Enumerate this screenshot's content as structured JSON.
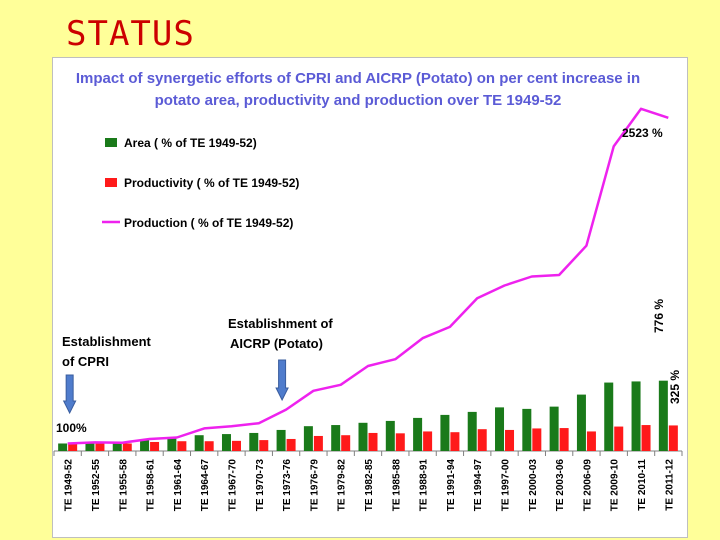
{
  "slide": {
    "title": "STATUS"
  },
  "colors": {
    "area": "#1a7a1a",
    "productivity": "#ff1a1a",
    "production": "#ee22ee",
    "title": "#5b5bd6",
    "slide_title": "#cc0000",
    "callout_arrow": "#4f7ccc"
  },
  "chart_data": {
    "type": "bar+line",
    "title_line1": "Impact of synergetic efforts of CPRI and AICRP (Potato) on per cent increase in",
    "title_line2": "potato area, productivity and production over TE 1949-52",
    "categories": [
      "TE 1949-52",
      "TE 1952-55",
      "TE 1955-58",
      "TE 1958-61",
      "TE 1961-64",
      "TE 1964-67",
      "TE 1967-70",
      "TE 1970-73",
      "TE 1973-76",
      "TE 1976-79",
      "TE 1979-82",
      "TE 1982-85",
      "TE 1985-88",
      "TE 1988-91",
      "TE 1991-94",
      "TE 1994-97",
      "TE 1997-00",
      "TE 2000-03",
      "TE 2003-06",
      "TE 2006-09",
      "TE 2009-10",
      "TE 2010-11",
      "TE 2011-12"
    ],
    "series": [
      {
        "name": "Area ( % of TE 1949-52)",
        "type": "bar",
        "values": [
          100,
          110,
          110,
          150,
          165,
          210,
          225,
          240,
          280,
          330,
          345,
          375,
          400,
          440,
          480,
          520,
          580,
          560,
          590,
          750,
          910,
          925,
          935
        ]
      },
      {
        "name": "Productivity ( % of TE 1949-52)",
        "type": "bar",
        "values": [
          100,
          100,
          100,
          120,
          130,
          130,
          135,
          145,
          160,
          200,
          210,
          240,
          235,
          260,
          250,
          290,
          280,
          300,
          305,
          260,
          325,
          345,
          340
        ]
      },
      {
        "name": "Production ( % of TE 1949-52)",
        "type": "line",
        "values": [
          100,
          115,
          110,
          160,
          180,
          300,
          330,
          370,
          550,
          800,
          880,
          1130,
          1220,
          1500,
          1650,
          2030,
          2200,
          2320,
          2340,
          2730,
          4050,
          4550,
          4430
        ]
      }
    ],
    "ylim": [
      0,
      4800
    ],
    "annotations": [
      {
        "text": "2523 %"
      },
      {
        "text": "776 %"
      },
      {
        "text": "325 %"
      },
      {
        "text": "100%"
      }
    ],
    "callouts": [
      {
        "line1": "Establishment",
        "line2": "of CPRI",
        "category_index": 0
      },
      {
        "line1": "Establishment of",
        "line2": "AICRP (Potato)",
        "category_index": 8
      }
    ]
  }
}
